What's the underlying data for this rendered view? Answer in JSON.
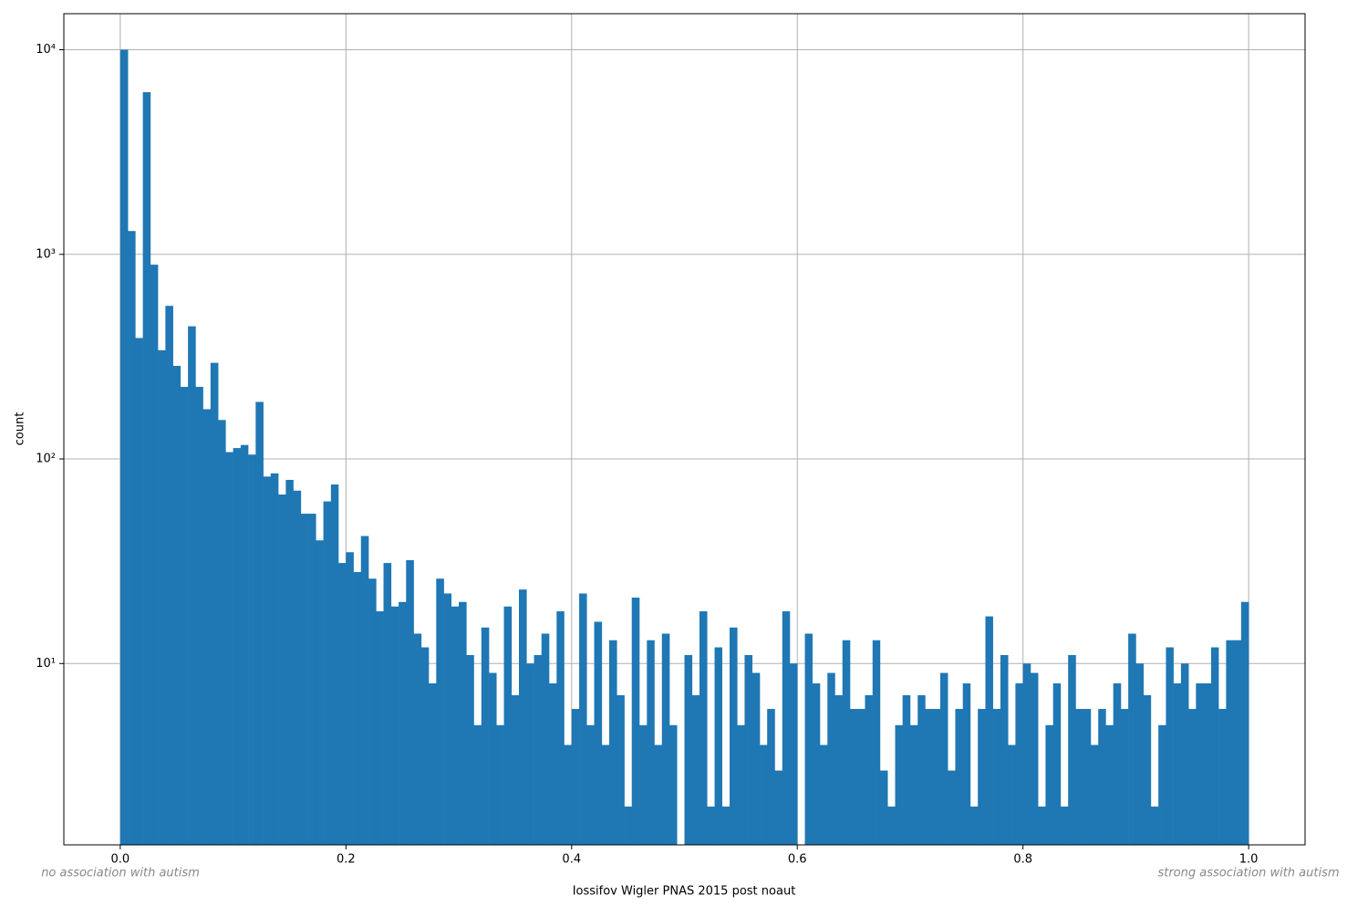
{
  "chart_data": {
    "type": "histogram",
    "xlabel": "Iossifov Wigler PNAS 2015 post noaut",
    "ylabel": "count",
    "annotations": [
      "no association with autism",
      "strong association with autism"
    ],
    "color": "#1f77b4",
    "log_y": true,
    "grid": true,
    "xlim": [
      -0.05,
      1.05
    ],
    "ylim": [
      1.3,
      15000
    ],
    "xticks": [
      {
        "value": 0,
        "label": "0.0"
      },
      0.2,
      0.4,
      0.6,
      0.8,
      {
        "value": 1,
        "label": "1.0"
      }
    ],
    "yticks": [
      {
        "value": 10,
        "label": "10¹"
      },
      {
        "value": 100,
        "label": "10²"
      },
      {
        "value": 1000,
        "label": "10³"
      },
      {
        "value": 10000,
        "label": "10⁴"
      }
    ],
    "bins": [
      0,
      0.0067,
      0.0133,
      0.02,
      0.0267,
      0.0333,
      0.04,
      0.0467,
      0.0533,
      0.06,
      0.0667,
      0.0733,
      0.08,
      0.0867,
      0.0933,
      0.1,
      0.1067,
      0.1133,
      0.12,
      0.1267,
      0.1333,
      0.14,
      0.1467,
      0.1533,
      0.16,
      0.1667,
      0.1733,
      0.18,
      0.1867,
      0.1933,
      0.2,
      0.2067,
      0.2133,
      0.22,
      0.2267,
      0.2333,
      0.24,
      0.2467,
      0.2533,
      0.26,
      0.2667,
      0.2733,
      0.28,
      0.2867,
      0.2933,
      0.3,
      0.3067,
      0.3133,
      0.32,
      0.3267,
      0.3333,
      0.34,
      0.3467,
      0.3533,
      0.36,
      0.3667,
      0.3733,
      0.38,
      0.3867,
      0.3933,
      0.4,
      0.4067,
      0.4133,
      0.42,
      0.4267,
      0.4333,
      0.44,
      0.4467,
      0.4533,
      0.46,
      0.4667,
      0.4733,
      0.48,
      0.4867,
      0.4933,
      0.5,
      0.5067,
      0.5133,
      0.52,
      0.5267,
      0.5333,
      0.54,
      0.5467,
      0.5533,
      0.56,
      0.5667,
      0.5733,
      0.58,
      0.5867,
      0.5933,
      0.6,
      0.6067,
      0.6133,
      0.62,
      0.6267,
      0.6333,
      0.64,
      0.6467,
      0.6533,
      0.66,
      0.6667,
      0.6733,
      0.68,
      0.6867,
      0.6933,
      0.7,
      0.7067,
      0.7133,
      0.72,
      0.7267,
      0.7333,
      0.74,
      0.7467,
      0.7533,
      0.76,
      0.7667,
      0.7733,
      0.78,
      0.7867,
      0.7933,
      0.8,
      0.8067,
      0.8133,
      0.82,
      0.8267,
      0.8333,
      0.84,
      0.8467,
      0.8533,
      0.86,
      0.8667,
      0.8733,
      0.88,
      0.8867,
      0.8933,
      0.9,
      0.9067,
      0.9133,
      0.92,
      0.9267,
      0.9333,
      0.94,
      0.9467,
      0.9533,
      0.96,
      0.9667,
      0.9733,
      0.98,
      0.9867,
      0.9933,
      1
    ],
    "values": [
      10000,
      1300,
      390,
      6200,
      890,
      340,
      560,
      285,
      225,
      445,
      225,
      175,
      295,
      155,
      108,
      113,
      117,
      105,
      190,
      82,
      85,
      67,
      79,
      70,
      54,
      54,
      40,
      62,
      75,
      31,
      35,
      28,
      42,
      26,
      18,
      31,
      19,
      20,
      32,
      14,
      12,
      8,
      26,
      22,
      19,
      20,
      11,
      5,
      15,
      9,
      5,
      19,
      7,
      23,
      10,
      11,
      14,
      8,
      18,
      4,
      6,
      22,
      5,
      16,
      4,
      13,
      7,
      2,
      21,
      5,
      13,
      4,
      14,
      5,
      0,
      11,
      7,
      18,
      2,
      12,
      2,
      15,
      5,
      11,
      9,
      4,
      6,
      3,
      18,
      10,
      0,
      14,
      8,
      4,
      9,
      7,
      13,
      6,
      6,
      7,
      13,
      3,
      2,
      5,
      7,
      5,
      7,
      6,
      6,
      9,
      3,
      6,
      8,
      2,
      6,
      17,
      6,
      11,
      4,
      8,
      10,
      9,
      2,
      5,
      8,
      2,
      11,
      6,
      6,
      4,
      6,
      5,
      8,
      6,
      14,
      10,
      7,
      2,
      5,
      12,
      8,
      10,
      6,
      8,
      8,
      12,
      6,
      13,
      13,
      20
    ]
  }
}
